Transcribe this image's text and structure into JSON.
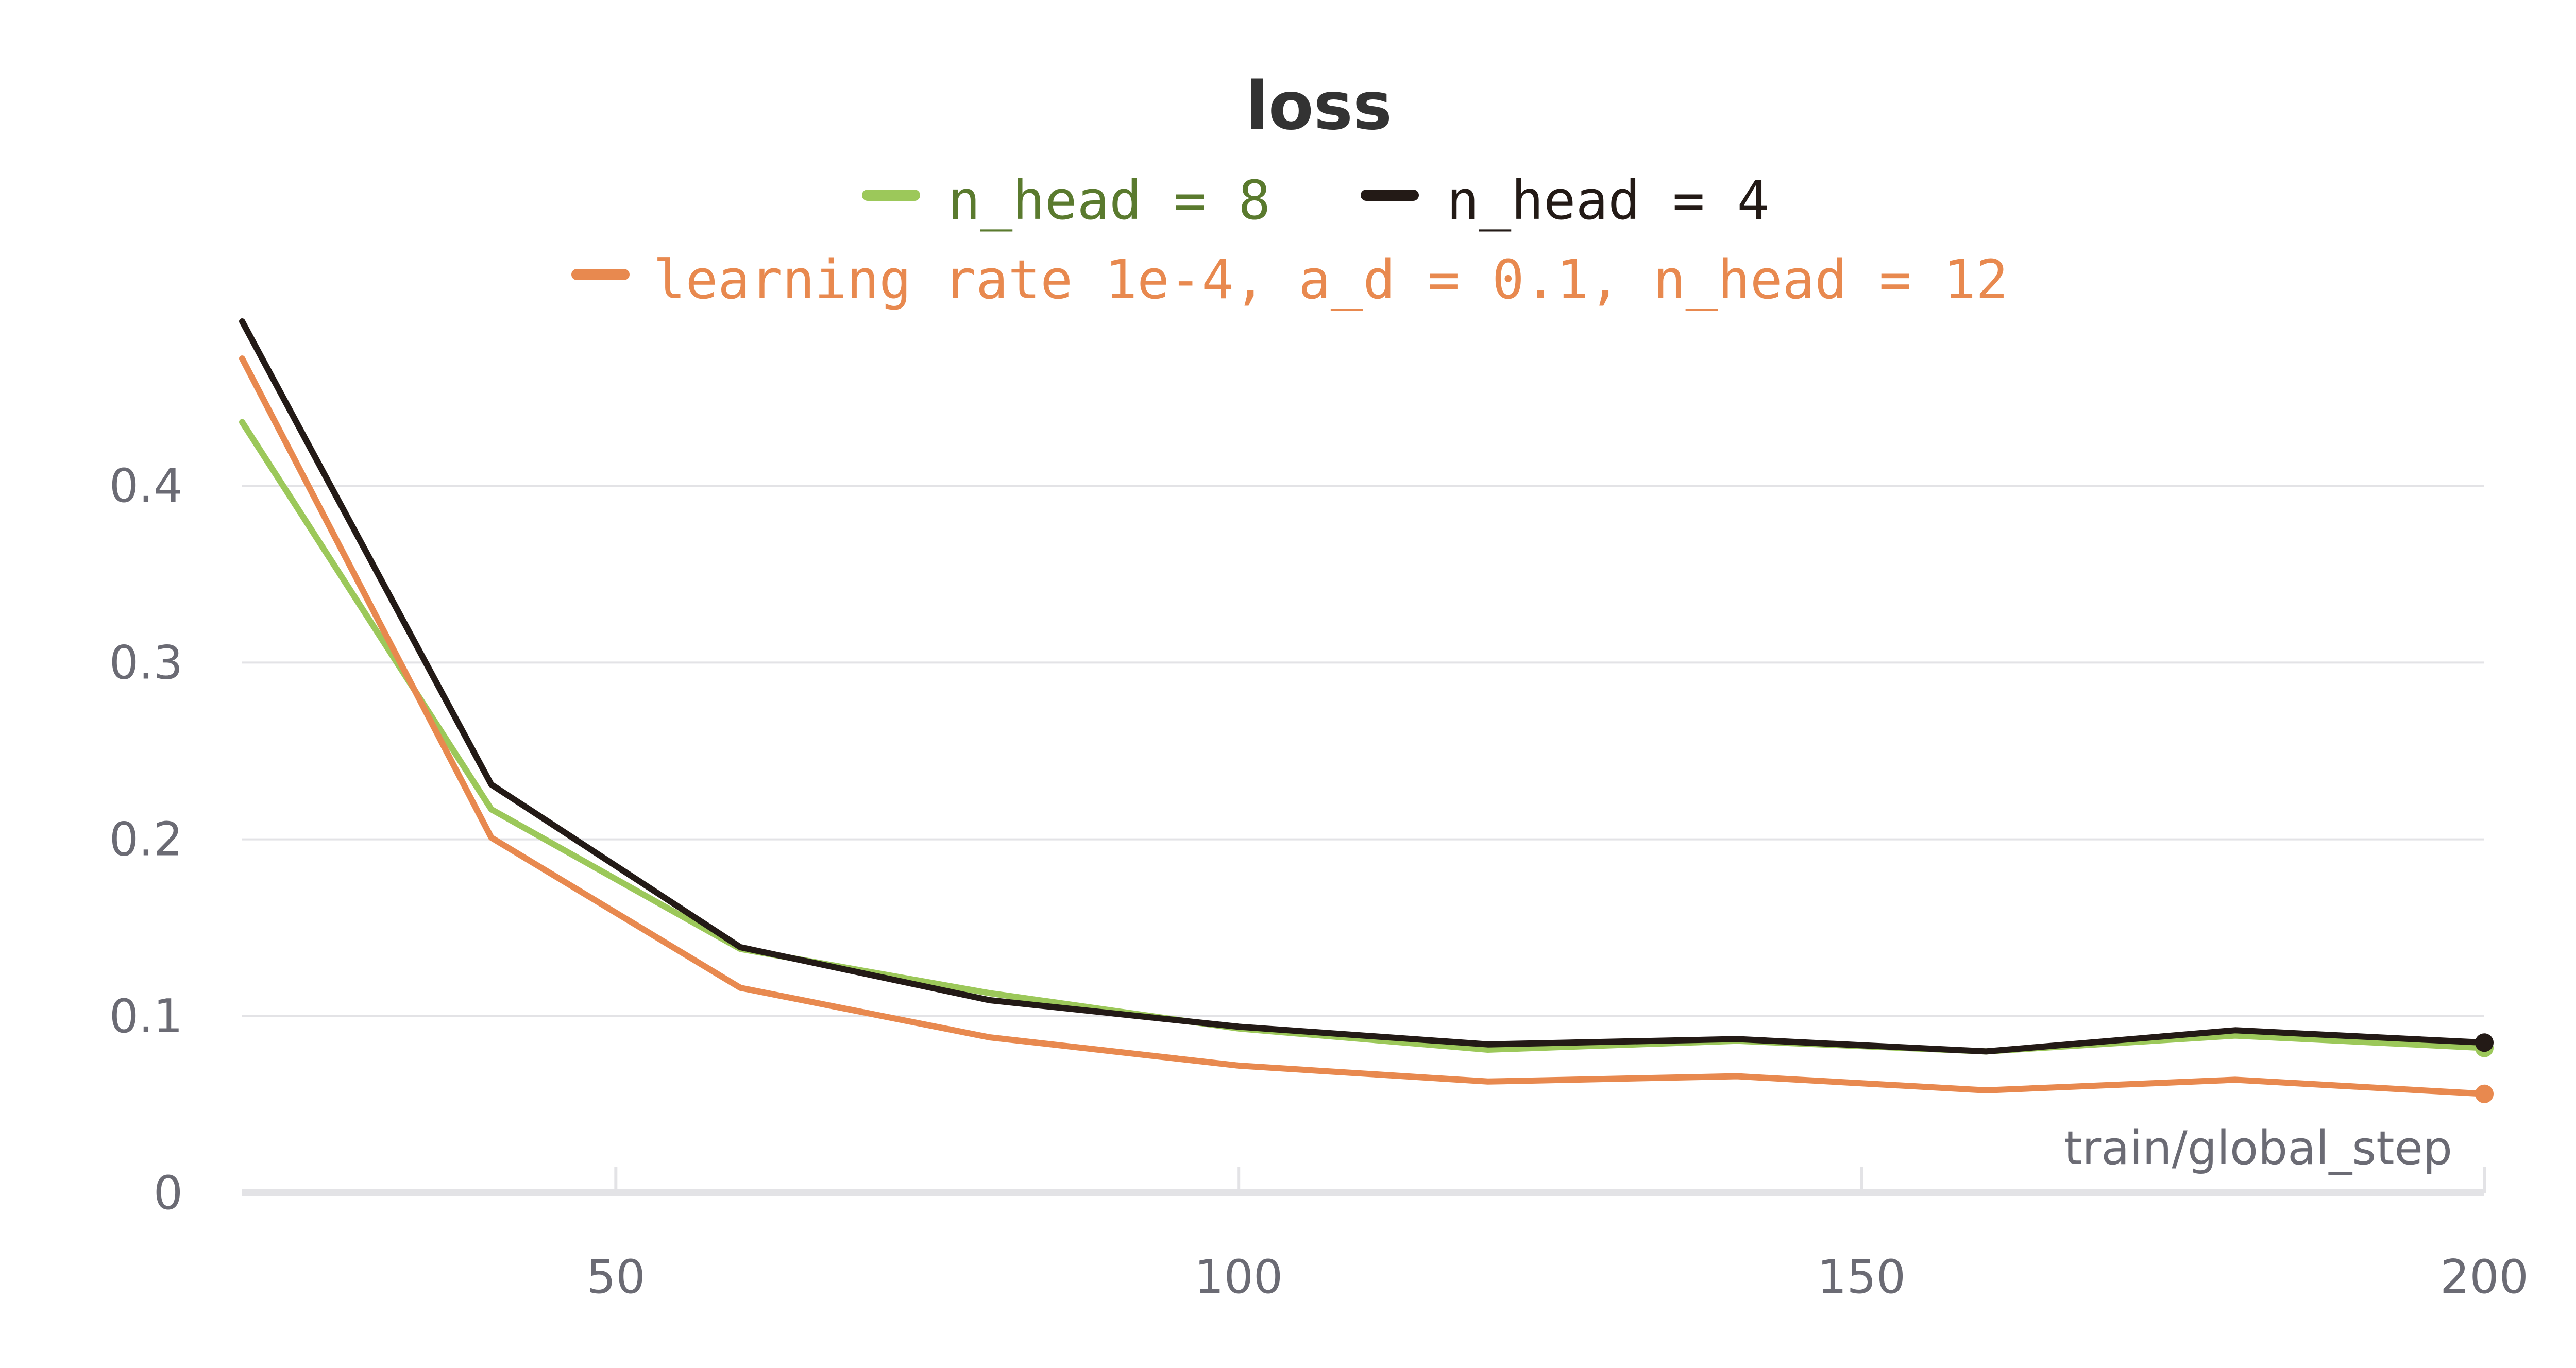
{
  "chart_data": {
    "type": "line",
    "title": "loss",
    "xlabel": "train/global_step",
    "ylabel": "",
    "xlim": [
      20,
      200
    ],
    "ylim": [
      0,
      0.5
    ],
    "x_ticks": [
      50,
      100,
      150,
      200
    ],
    "y_ticks": [
      0,
      0.1,
      0.2,
      0.3,
      0.4
    ],
    "y_tick_labels": [
      "0",
      "0.1",
      "0.2",
      "0.3",
      "0.4"
    ],
    "x_tick_labels": [
      "50",
      "100",
      "150",
      "200"
    ],
    "grid": "horizontal",
    "legend_position": "top-center",
    "x": [
      20,
      40,
      60,
      80,
      100,
      120,
      140,
      160,
      180,
      200
    ],
    "series": [
      {
        "name": "n_head = 8",
        "color": "#9cc85a",
        "text_color": "#5a7a2e",
        "values": [
          0.436,
          0.217,
          0.138,
          0.113,
          0.093,
          0.081,
          0.086,
          0.08,
          0.089,
          0.082
        ]
      },
      {
        "name": "n_head = 4",
        "color": "#231a16",
        "text_color": "#231a16",
        "values": [
          0.493,
          0.231,
          0.139,
          0.109,
          0.094,
          0.084,
          0.087,
          0.08,
          0.092,
          0.085
        ]
      },
      {
        "name": "learning rate 1e-4, a_d = 0.1, n_head = 12",
        "color": "#e8894f",
        "text_color": "#e8894f",
        "values": [
          0.472,
          0.201,
          0.116,
          0.088,
          0.072,
          0.063,
          0.066,
          0.058,
          0.064,
          0.056
        ]
      }
    ]
  }
}
